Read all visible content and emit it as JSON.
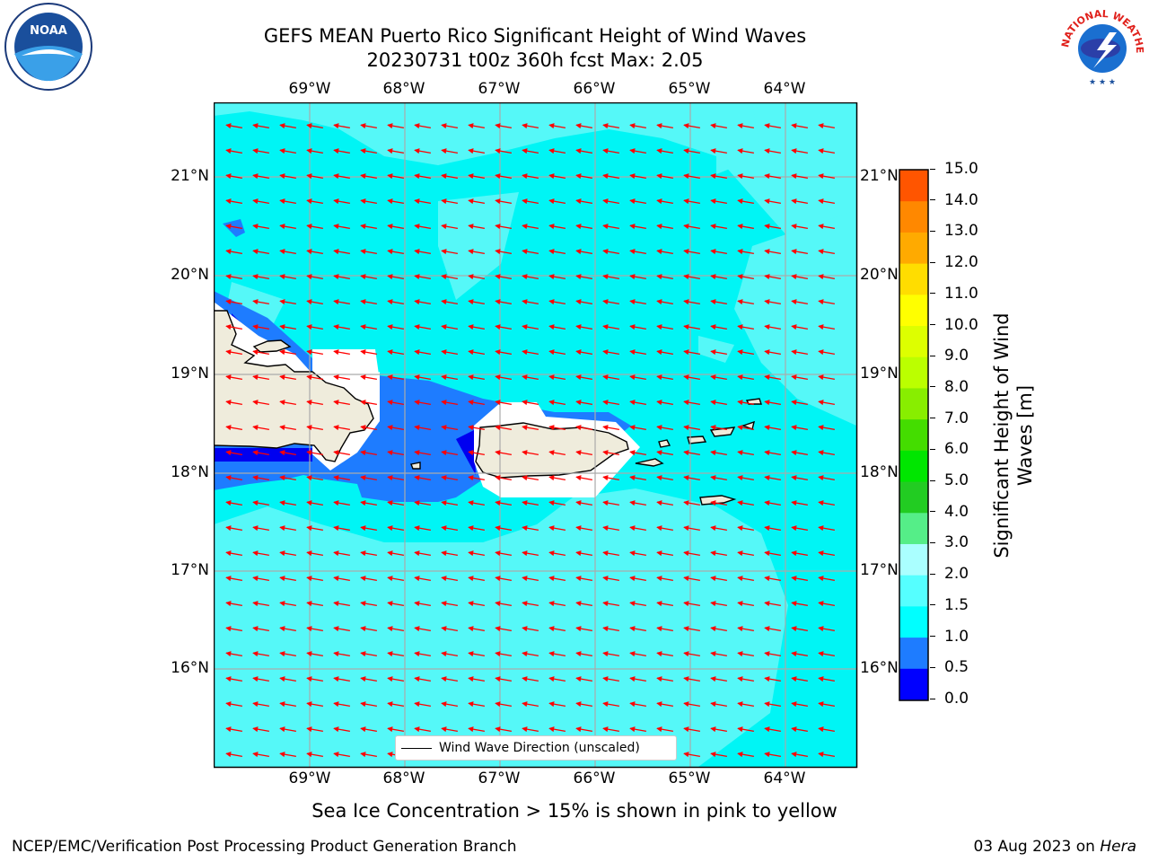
{
  "header": {
    "title_line1": "GEFS MEAN Puerto Rico Significant Height of Wind Waves",
    "title_line2": "20230731 t00z 360h fcst   Max: 2.05"
  },
  "logos": {
    "left": {
      "name": "noaa-logo",
      "text": "NOAA"
    },
    "right": {
      "name": "national-weather-service-logo",
      "text": "NATIONAL WEATHER SERVICE"
    }
  },
  "map": {
    "lon_labels": [
      "69°W",
      "68°W",
      "67°W",
      "66°W",
      "65°W",
      "64°W"
    ],
    "lat_labels": [
      "21°N",
      "20°N",
      "19°N",
      "18°N",
      "17°N",
      "16°N"
    ],
    "legend_label": "Wind Wave Direction (unscaled)",
    "colors": {
      "ocean_main": "#00f5f5",
      "ocean_light": "#55f8f8",
      "wave_0_5_1": "#1e7cff",
      "wave_0_0_5": "#0000f0",
      "land": "#efecdc",
      "arrow": "#ff0000",
      "gridline": "#aaaaaa"
    },
    "arrow_direction": "toward west-southwest"
  },
  "colorbar": {
    "title": "Significant Height of Wind Waves [m]",
    "tick_labels": [
      "15.0",
      "14.0",
      "13.0",
      "12.0",
      "11.0",
      "10.0",
      "9.0",
      "8.0",
      "7.0",
      "6.0",
      "5.0",
      "4.0",
      "3.0",
      "2.0",
      "1.5",
      "1.0",
      "0.5",
      "0.0"
    ],
    "colors_bottom_to_top": [
      "#0000ff",
      "#1e7cff",
      "#00ffff",
      "#55ffff",
      "#aaffff",
      "#55ee88",
      "#22cc22",
      "#00e600",
      "#44dd00",
      "#88ee00",
      "#bbff00",
      "#ddff00",
      "#ffff00",
      "#ffdd00",
      "#ffaa00",
      "#ff8800",
      "#ff5500",
      "#ff2a00",
      "#ff0000"
    ]
  },
  "footer": {
    "note": "Sea Ice Concentration > 15% is shown in pink to yellow",
    "left": "NCEP/EMC/Verification Post Processing Product Generation Branch",
    "right_prefix": "03 Aug 2023 on ",
    "right_host": "Hera"
  }
}
